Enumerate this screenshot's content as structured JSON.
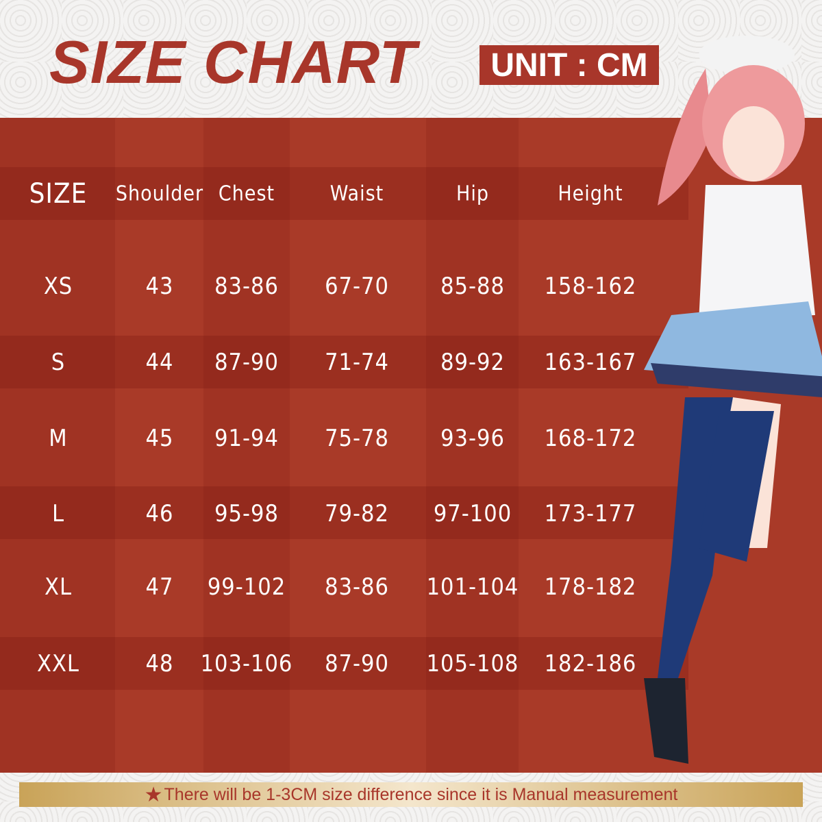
{
  "title": "SIZE CHART",
  "unit": "UNIT : CM",
  "colors": {
    "accent": "#a8362a",
    "panel": "#a93a28",
    "note_bg": "#e8cf9f"
  },
  "table": {
    "headers": [
      "SIZE",
      "Shoulder",
      "Chest",
      "Waist",
      "Hip",
      "Height"
    ],
    "rows": [
      [
        "XS",
        "43",
        "83-86",
        "67-70",
        "85-88",
        "158-162"
      ],
      [
        "S",
        "44",
        "87-90",
        "71-74",
        "89-92",
        "163-167"
      ],
      [
        "M",
        "45",
        "91-94",
        "75-78",
        "93-96",
        "168-172"
      ],
      [
        "L",
        "46",
        "95-98",
        "79-82",
        "97-100",
        "173-177"
      ],
      [
        "XL",
        "47",
        "99-102",
        "83-86",
        "101-104",
        "178-182"
      ],
      [
        "XXL",
        "48",
        "103-106",
        "87-90",
        "105-108",
        "182-186"
      ]
    ]
  },
  "note": {
    "icon": "star-icon",
    "text": "There will be 1-3CM size difference since it is Manual measurement"
  }
}
